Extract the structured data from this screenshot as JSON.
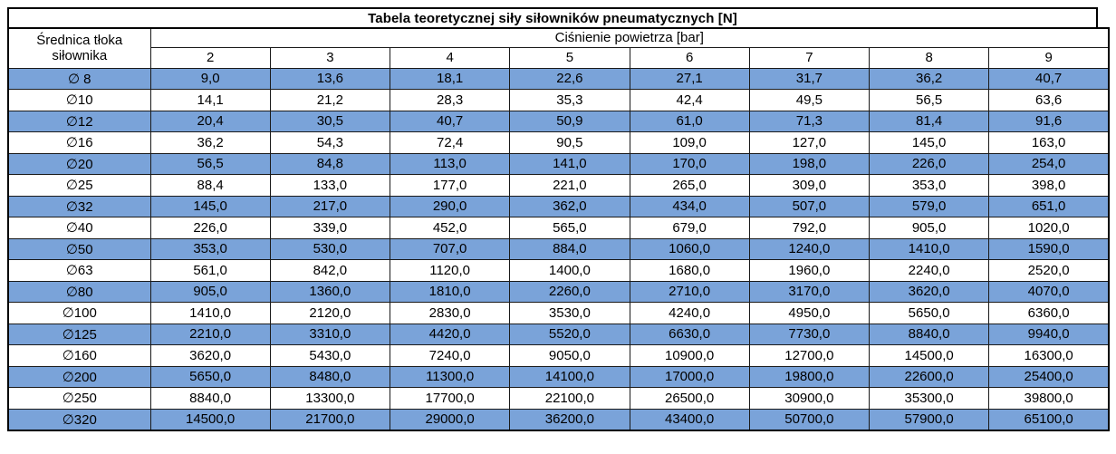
{
  "colors": {
    "row_blue": "#7aa3d9",
    "row_white": "#ffffff",
    "border": "#000000",
    "text": "#000000"
  },
  "chart_data": {
    "type": "table",
    "title": "Tabela teoretycznej siły siłowników pneumatycznych [N]",
    "row_header_label": "Średnica tłoka siłownika",
    "col_group_label": "Ciśnienie powietrza [bar]",
    "columns": [
      "2",
      "3",
      "4",
      "5",
      "6",
      "7",
      "8",
      "9"
    ],
    "rows": [
      {
        "diameter": "∅ 8",
        "values": [
          "9,0",
          "13,6",
          "18,1",
          "22,6",
          "27,1",
          "31,7",
          "36,2",
          "40,7"
        ]
      },
      {
        "diameter": "∅10",
        "values": [
          "14,1",
          "21,2",
          "28,3",
          "35,3",
          "42,4",
          "49,5",
          "56,5",
          "63,6"
        ]
      },
      {
        "diameter": "∅12",
        "values": [
          "20,4",
          "30,5",
          "40,7",
          "50,9",
          "61,0",
          "71,3",
          "81,4",
          "91,6"
        ]
      },
      {
        "diameter": "∅16",
        "values": [
          "36,2",
          "54,3",
          "72,4",
          "90,5",
          "109,0",
          "127,0",
          "145,0",
          "163,0"
        ]
      },
      {
        "diameter": "∅20",
        "values": [
          "56,5",
          "84,8",
          "113,0",
          "141,0",
          "170,0",
          "198,0",
          "226,0",
          "254,0"
        ]
      },
      {
        "diameter": "∅25",
        "values": [
          "88,4",
          "133,0",
          "177,0",
          "221,0",
          "265,0",
          "309,0",
          "353,0",
          "398,0"
        ]
      },
      {
        "diameter": "∅32",
        "values": [
          "145,0",
          "217,0",
          "290,0",
          "362,0",
          "434,0",
          "507,0",
          "579,0",
          "651,0"
        ]
      },
      {
        "diameter": "∅40",
        "values": [
          "226,0",
          "339,0",
          "452,0",
          "565,0",
          "679,0",
          "792,0",
          "905,0",
          "1020,0"
        ]
      },
      {
        "diameter": "∅50",
        "values": [
          "353,0",
          "530,0",
          "707,0",
          "884,0",
          "1060,0",
          "1240,0",
          "1410,0",
          "1590,0"
        ]
      },
      {
        "diameter": "∅63",
        "values": [
          "561,0",
          "842,0",
          "1120,0",
          "1400,0",
          "1680,0",
          "1960,0",
          "2240,0",
          "2520,0"
        ]
      },
      {
        "diameter": "∅80",
        "values": [
          "905,0",
          "1360,0",
          "1810,0",
          "2260,0",
          "2710,0",
          "3170,0",
          "3620,0",
          "4070,0"
        ]
      },
      {
        "diameter": "∅100",
        "values": [
          "1410,0",
          "2120,0",
          "2830,0",
          "3530,0",
          "4240,0",
          "4950,0",
          "5650,0",
          "6360,0"
        ]
      },
      {
        "diameter": "∅125",
        "values": [
          "2210,0",
          "3310,0",
          "4420,0",
          "5520,0",
          "6630,0",
          "7730,0",
          "8840,0",
          "9940,0"
        ]
      },
      {
        "diameter": "∅160",
        "values": [
          "3620,0",
          "5430,0",
          "7240,0",
          "9050,0",
          "10900,0",
          "12700,0",
          "14500,0",
          "16300,0"
        ]
      },
      {
        "diameter": "∅200",
        "values": [
          "5650,0",
          "8480,0",
          "11300,0",
          "14100,0",
          "17000,0",
          "19800,0",
          "22600,0",
          "25400,0"
        ]
      },
      {
        "diameter": "∅250",
        "values": [
          "8840,0",
          "13300,0",
          "17700,0",
          "22100,0",
          "26500,0",
          "30900,0",
          "35300,0",
          "39800,0"
        ]
      },
      {
        "diameter": "∅320",
        "values": [
          "14500,0",
          "21700,0",
          "29000,0",
          "36200,0",
          "43400,0",
          "50700,0",
          "57900,0",
          "65100,0"
        ]
      }
    ]
  }
}
